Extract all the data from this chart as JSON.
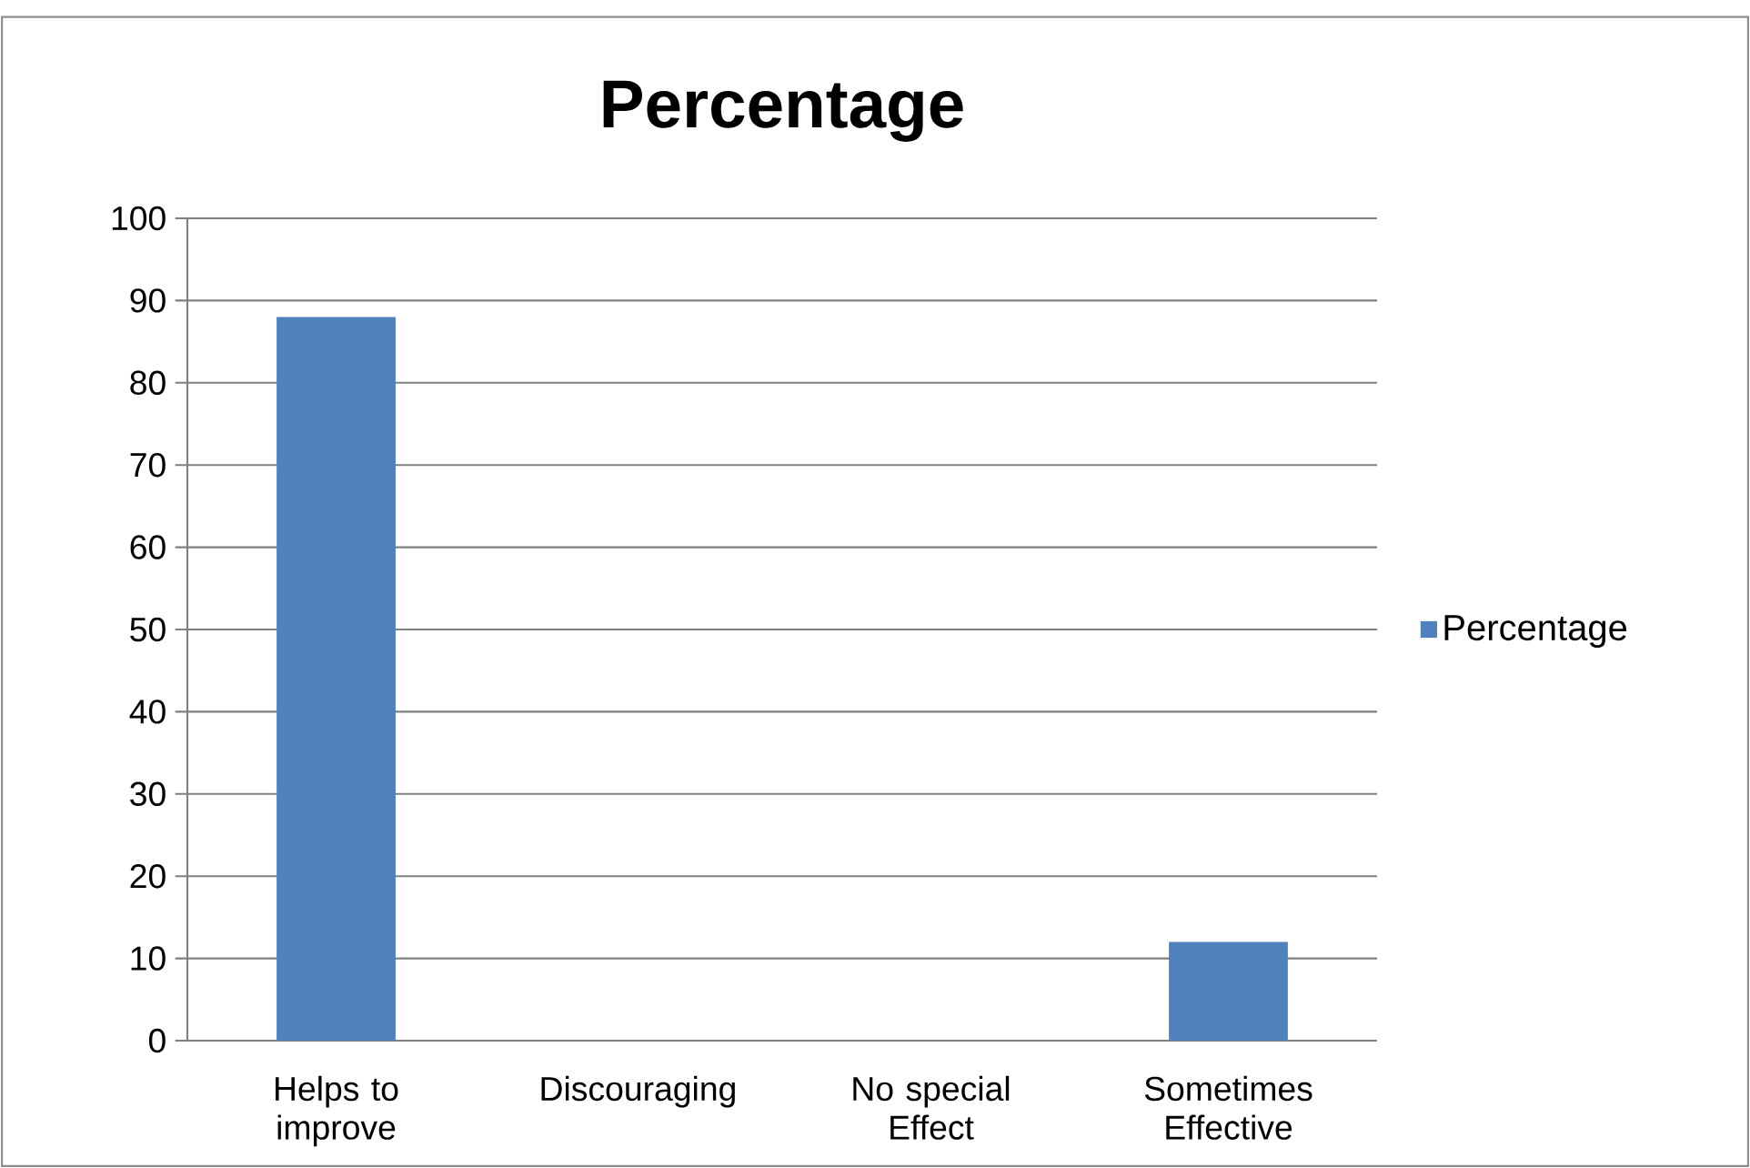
{
  "chart_data": {
    "type": "bar",
    "title": "Percentage",
    "categories": [
      "Helps to improve",
      "Discouraging",
      "No special Effect",
      "Sometimes Effective"
    ],
    "series": [
      {
        "name": "Percentage",
        "color": "#4f81bd",
        "values": [
          88,
          0,
          0,
          12
        ]
      }
    ],
    "ylim": [
      0,
      100
    ],
    "yticks": [
      0,
      10,
      20,
      30,
      40,
      50,
      60,
      70,
      80,
      90,
      100
    ],
    "grid": "y",
    "legend": "right"
  }
}
